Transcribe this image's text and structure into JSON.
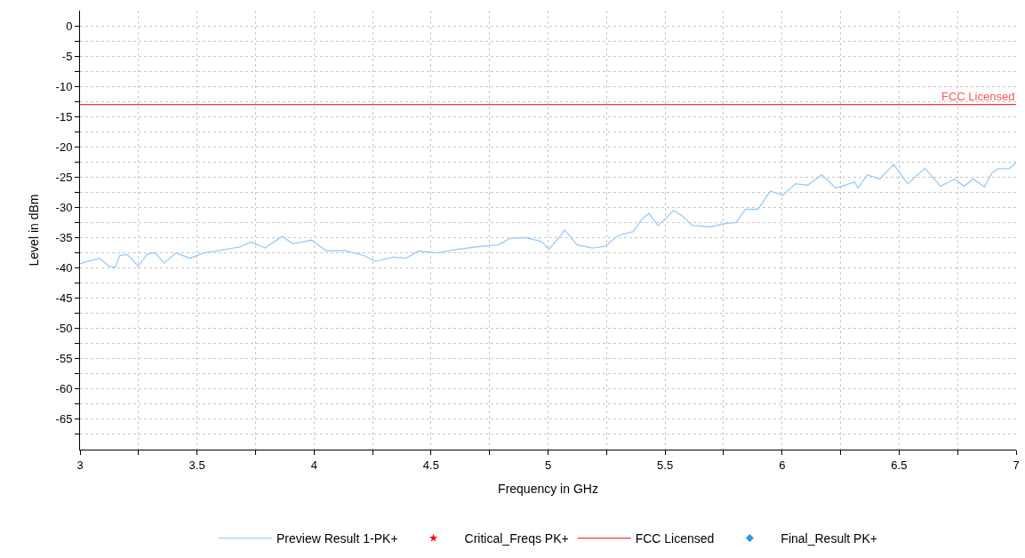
{
  "chart_data": {
    "type": "line",
    "xlabel": "Frequency in GHz",
    "ylabel": "Level in dBm",
    "xlim": [
      3,
      7
    ],
    "ylim": [
      -70,
      2.5
    ],
    "xticks": [
      3,
      {
        "value": 3.25,
        "label": null
      },
      3.5,
      {
        "value": 3.75,
        "label": null
      },
      4,
      {
        "value": 4.25,
        "label": null
      },
      4.5,
      {
        "value": 4.75,
        "label": null
      },
      5,
      {
        "value": 5.25,
        "label": null
      },
      5.5,
      {
        "value": 5.75,
        "label": null
      },
      6,
      {
        "value": 6.25,
        "label": null
      },
      6.5,
      {
        "value": 6.75,
        "label": null
      },
      7
    ],
    "yticks": [
      0,
      {
        "value": -2.5,
        "label": null
      },
      -5,
      {
        "value": -7.5,
        "label": null
      },
      -10,
      {
        "value": -12.5,
        "label": null
      },
      -15,
      {
        "value": -17.5,
        "label": null
      },
      -20,
      {
        "value": -22.5,
        "label": null
      },
      -25,
      {
        "value": -27.5,
        "label": null
      },
      -30,
      {
        "value": -32.5,
        "label": null
      },
      -35,
      {
        "value": -37.5,
        "label": null
      },
      -40,
      {
        "value": -42.5,
        "label": null
      },
      -45,
      {
        "value": -47.5,
        "label": null
      },
      -50,
      {
        "value": -52.5,
        "label": null
      },
      -55,
      {
        "value": -57.5,
        "label": null
      },
      -60,
      {
        "value": -62.5,
        "label": null
      },
      -65,
      {
        "value": -67.5,
        "label": null
      }
    ],
    "grid": true,
    "legend": "bottom",
    "series": [
      {
        "name": "Preview Result 1-PK+",
        "color": "#99ccff",
        "x": [
          3.0,
          3.033,
          3.085,
          3.124,
          3.15,
          3.17,
          3.203,
          3.249,
          3.288,
          3.32,
          3.36,
          3.41,
          3.47,
          3.53,
          3.61,
          3.687,
          3.73,
          3.79,
          3.864,
          3.91,
          3.988,
          4.054,
          4.13,
          4.21,
          4.263,
          4.34,
          4.394,
          4.446,
          4.525,
          4.6,
          4.695,
          4.787,
          4.839,
          4.905,
          4.97,
          5.004,
          5.057,
          5.07,
          5.124,
          5.19,
          5.244,
          5.297,
          5.364,
          5.404,
          5.431,
          5.47,
          5.537,
          5.577,
          5.617,
          5.697,
          5.75,
          5.804,
          5.844,
          5.897,
          5.95,
          6.004,
          6.057,
          6.11,
          6.17,
          6.23,
          6.31,
          6.324,
          6.364,
          6.417,
          6.477,
          6.537,
          6.61,
          6.677,
          6.737,
          6.777,
          6.817,
          6.864,
          6.897,
          6.924,
          6.97,
          7.0
        ],
        "values": [
          -39.3,
          -38.9,
          -38.4,
          -39.7,
          -39.9,
          -37.9,
          -37.8,
          -39.7,
          -37.7,
          -37.5,
          -39.2,
          -37.5,
          -38.4,
          -37.5,
          -37.0,
          -36.5,
          -35.7,
          -36.7,
          -34.8,
          -36.0,
          -35.4,
          -37.2,
          -37.1,
          -37.9,
          -38.9,
          -38.2,
          -38.4,
          -37.2,
          -37.5,
          -37.0,
          -36.5,
          -36.2,
          -35.1,
          -35.0,
          -35.6,
          -36.9,
          -34.5,
          -33.7,
          -36.2,
          -36.7,
          -36.4,
          -34.7,
          -34.0,
          -31.8,
          -31.0,
          -33.0,
          -30.5,
          -31.5,
          -33.0,
          -33.2,
          -32.7,
          -32.5,
          -30.3,
          -30.3,
          -27.3,
          -28.0,
          -26.1,
          -26.3,
          -24.6,
          -26.8,
          -25.8,
          -26.8,
          -24.6,
          -25.3,
          -22.9,
          -26.1,
          -23.5,
          -26.5,
          -25.3,
          -26.5,
          -25.3,
          -26.6,
          -24.3,
          -23.6,
          -23.6,
          -22.6
        ]
      },
      {
        "name": "Critical_Freqs PK+",
        "type": "scatter",
        "color": "#ff0000",
        "marker": "star"
      },
      {
        "name": "FCC Licensed",
        "color": "#ff3333",
        "x": [
          3,
          7
        ],
        "values": [
          -13,
          -13
        ]
      },
      {
        "name": "Final_Result PK+",
        "type": "scatter",
        "color": "#3399dd",
        "marker": "diamond"
      }
    ],
    "annotations": [
      {
        "text": "FCC Licensed",
        "x": 7,
        "y": -13
      }
    ]
  }
}
